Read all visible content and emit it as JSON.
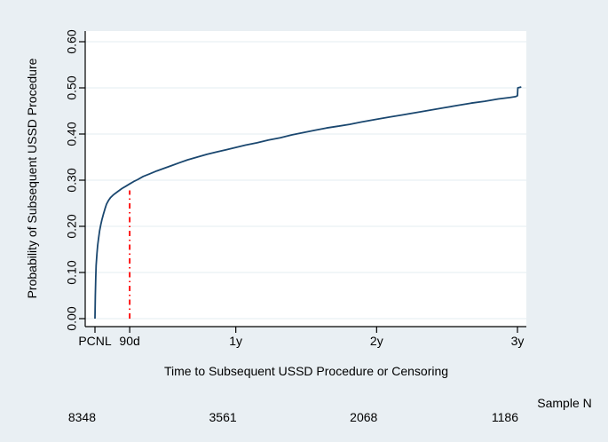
{
  "figure": {
    "bg_color": "#e9eff3",
    "plot_bg": "#ffffff",
    "grid_color": "#e3ecf1",
    "axis_color": "#000000"
  },
  "chart_data": {
    "type": "line",
    "title": "",
    "xlabel": "Time to Subsequent USSD Procedure or Censoring",
    "ylabel": "Probability of Subsequent USSD Procedure",
    "ylim": [
      0.0,
      0.62
    ],
    "xlim_days": [
      0,
      1118
    ],
    "grid": "horizontal-only",
    "legend": "none",
    "x_ticks": [
      {
        "label": "PCNL",
        "day": 0
      },
      {
        "label": "90d",
        "day": 90
      },
      {
        "label": "1y",
        "day": 365
      },
      {
        "label": "2y",
        "day": 730
      },
      {
        "label": "3y",
        "day": 1095
      }
    ],
    "y_ticks": [
      {
        "label": "0.00",
        "value": 0.0
      },
      {
        "label": "0.10",
        "value": 0.1
      },
      {
        "label": "0.20",
        "value": 0.2
      },
      {
        "label": "0.30",
        "value": 0.3
      },
      {
        "label": "0.40",
        "value": 0.4
      },
      {
        "label": "0.50",
        "value": 0.5
      },
      {
        "label": "0.60",
        "value": 0.6
      }
    ],
    "series": [
      {
        "name": "Probability of subsequent USSD procedure",
        "color": "#1a476f",
        "points": [
          [
            0,
            0.0
          ],
          [
            1,
            0.05
          ],
          [
            2,
            0.09
          ],
          [
            3,
            0.115
          ],
          [
            5,
            0.14
          ],
          [
            7,
            0.158
          ],
          [
            9,
            0.172
          ],
          [
            12,
            0.19
          ],
          [
            15,
            0.203
          ],
          [
            18,
            0.214
          ],
          [
            22,
            0.227
          ],
          [
            26,
            0.238
          ],
          [
            30,
            0.248
          ],
          [
            35,
            0.256
          ],
          [
            40,
            0.262
          ],
          [
            46,
            0.267
          ],
          [
            52,
            0.271
          ],
          [
            60,
            0.276
          ],
          [
            70,
            0.282
          ],
          [
            80,
            0.287
          ],
          [
            90,
            0.292
          ],
          [
            100,
            0.297
          ],
          [
            110,
            0.301
          ],
          [
            125,
            0.308
          ],
          [
            140,
            0.313
          ],
          [
            160,
            0.32
          ],
          [
            180,
            0.326
          ],
          [
            200,
            0.332
          ],
          [
            220,
            0.338
          ],
          [
            240,
            0.344
          ],
          [
            265,
            0.35
          ],
          [
            290,
            0.356
          ],
          [
            315,
            0.361
          ],
          [
            340,
            0.366
          ],
          [
            365,
            0.371
          ],
          [
            390,
            0.376
          ],
          [
            420,
            0.381
          ],
          [
            450,
            0.387
          ],
          [
            480,
            0.392
          ],
          [
            510,
            0.398
          ],
          [
            540,
            0.403
          ],
          [
            570,
            0.408
          ],
          [
            600,
            0.413
          ],
          [
            630,
            0.417
          ],
          [
            660,
            0.421
          ],
          [
            690,
            0.426
          ],
          [
            730,
            0.432
          ],
          [
            765,
            0.437
          ],
          [
            800,
            0.442
          ],
          [
            835,
            0.447
          ],
          [
            870,
            0.452
          ],
          [
            905,
            0.457
          ],
          [
            940,
            0.462
          ],
          [
            975,
            0.467
          ],
          [
            1010,
            0.471
          ],
          [
            1045,
            0.476
          ],
          [
            1075,
            0.479
          ],
          [
            1090,
            0.481
          ],
          [
            1095,
            0.483
          ],
          [
            1096,
            0.5
          ],
          [
            1105,
            0.502
          ]
        ]
      }
    ],
    "reference_line": {
      "day": 90,
      "from": 0.0,
      "to": 0.278,
      "color": "#ff0000",
      "style": "dash-dot"
    },
    "sample_n": {
      "label": "Sample N",
      "values": [
        {
          "day": 0,
          "n": "8348"
        },
        {
          "day": 365,
          "n": "3561"
        },
        {
          "day": 730,
          "n": "2068"
        },
        {
          "day": 1095,
          "n": "1186"
        }
      ]
    }
  }
}
